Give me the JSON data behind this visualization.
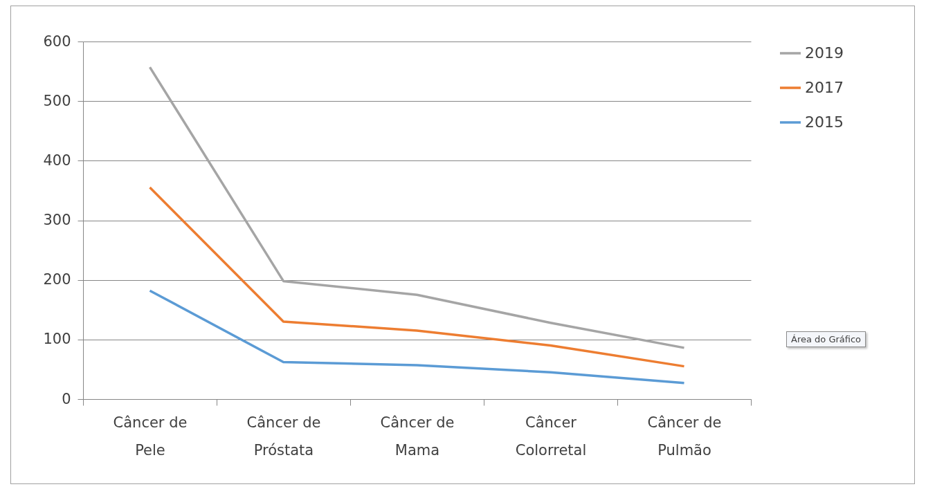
{
  "chart_data": {
    "type": "line",
    "categories": [
      "Câncer de Pele",
      "Câncer de Próstata",
      "Câncer de Mama",
      "Câncer Colorretal",
      "Câncer de Pulmão"
    ],
    "series": [
      {
        "name": "2019",
        "color": "#a5a5a5",
        "values": [
          557,
          198,
          175,
          128,
          86
        ]
      },
      {
        "name": "2017",
        "color": "#ed7d31",
        "values": [
          355,
          130,
          115,
          90,
          55
        ]
      },
      {
        "name": "2015",
        "color": "#5b9bd5",
        "values": [
          182,
          62,
          57,
          45,
          27
        ]
      }
    ],
    "ylim": [
      0,
      600
    ],
    "yticks": [
      0,
      100,
      200,
      300,
      400,
      500,
      600
    ],
    "grid": "y",
    "legend": "right",
    "marker": "none",
    "line_style": "solid",
    "annotations": [
      "Área do Gráfico"
    ]
  }
}
